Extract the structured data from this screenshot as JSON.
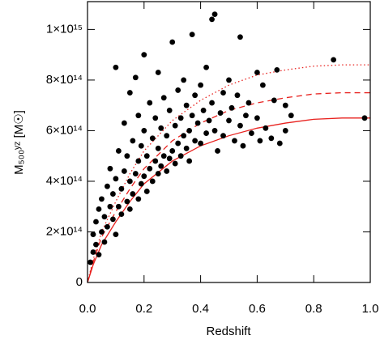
{
  "chart_data": {
    "type": "scatter",
    "xlabel": "Redshift",
    "ylabel": "M₅₀₀ʸᶻ [M☉]",
    "color": "#000000",
    "xlim": [
      0,
      1.0
    ],
    "ylim": [
      0,
      1110000000000000.0
    ],
    "xticks": [
      {
        "value": 0,
        "label": "0.0"
      },
      {
        "value": 0.2,
        "label": "0.2"
      },
      {
        "value": 0.4,
        "label": "0.4"
      },
      {
        "value": 0.6,
        "label": "0.6"
      },
      {
        "value": 0.8,
        "label": "0.8"
      },
      {
        "value": 1.0,
        "label": "1.0"
      }
    ],
    "yticks": [
      0,
      {
        "value": 200000000000000.0,
        "label": "2×10¹⁴"
      },
      {
        "value": 400000000000000.0,
        "label": "4×10¹⁴"
      },
      {
        "value": 600000000000000.0,
        "label": "6×10¹⁴"
      },
      {
        "value": 800000000000000.0,
        "label": "8×10¹⁴"
      },
      {
        "value": 1000000000000000.0,
        "label": "1×10¹⁵"
      }
    ],
    "x": [
      0.01,
      0.02,
      0.02,
      0.03,
      0.03,
      0.04,
      0.04,
      0.05,
      0.05,
      0.06,
      0.06,
      0.07,
      0.07,
      0.08,
      0.08,
      0.09,
      0.09,
      0.1,
      0.1,
      0.1,
      0.11,
      0.11,
      0.12,
      0.12,
      0.13,
      0.13,
      0.14,
      0.14,
      0.15,
      0.15,
      0.15,
      0.16,
      0.16,
      0.17,
      0.17,
      0.18,
      0.18,
      0.18,
      0.19,
      0.19,
      0.2,
      0.2,
      0.2,
      0.21,
      0.21,
      0.22,
      0.22,
      0.23,
      0.23,
      0.24,
      0.24,
      0.25,
      0.25,
      0.25,
      0.26,
      0.26,
      0.27,
      0.27,
      0.28,
      0.28,
      0.29,
      0.29,
      0.3,
      0.3,
      0.31,
      0.31,
      0.32,
      0.32,
      0.33,
      0.33,
      0.34,
      0.34,
      0.35,
      0.35,
      0.36,
      0.36,
      0.37,
      0.37,
      0.38,
      0.38,
      0.39,
      0.4,
      0.4,
      0.41,
      0.42,
      0.42,
      0.43,
      0.44,
      0.44,
      0.45,
      0.45,
      0.46,
      0.47,
      0.48,
      0.48,
      0.5,
      0.5,
      0.51,
      0.52,
      0.53,
      0.54,
      0.54,
      0.55,
      0.56,
      0.57,
      0.58,
      0.6,
      0.6,
      0.61,
      0.62,
      0.63,
      0.65,
      0.66,
      0.67,
      0.68,
      0.7,
      0.7,
      0.72,
      0.87,
      0.98
    ],
    "y": [
      80000000000000.0,
      120000000000000.0,
      190000000000000.0,
      150000000000000.0,
      240000000000000.0,
      110000000000000.0,
      290000000000000.0,
      200000000000000.0,
      330000000000000.0,
      160000000000000.0,
      260000000000000.0,
      380000000000000.0,
      220000000000000.0,
      300000000000000.0,
      450000000000000.0,
      250000000000000.0,
      350000000000000.0,
      190000000000000.0,
      410000000000000.0,
      850000000000000.0,
      300000000000000.0,
      520000000000000.0,
      270000000000000.0,
      370000000000000.0,
      440000000000000.0,
      630000000000000.0,
      320000000000000.0,
      500000000000000.0,
      290000000000000.0,
      400000000000000.0,
      750000000000000.0,
      350000000000000.0,
      560000000000000.0,
      430000000000000.0,
      810000000000000.0,
      330000000000000.0,
      480000000000000.0,
      660000000000000.0,
      390000000000000.0,
      540000000000000.0,
      420000000000000.0,
      600000000000000.0,
      900000000000000.0,
      360000000000000.0,
      500000000000000.0,
      450000000000000.0,
      710000000000000.0,
      400000000000000.0,
      570000000000000.0,
      480000000000000.0,
      650000000000000.0,
      430000000000000.0,
      530000000000000.0,
      830000000000000.0,
      460000000000000.0,
      610000000000000.0,
      500000000000000.0,
      730000000000000.0,
      440000000000000.0,
      580000000000000.0,
      490000000000000.0,
      680000000000000.0,
      520000000000000.0,
      950000000000000.0,
      470000000000000.0,
      620000000000000.0,
      550000000000000.0,
      760000000000000.0,
      500000000000000.0,
      650000000000000.0,
      580000000000000.0,
      800000000000000.0,
      530000000000000.0,
      700000000000000.0,
      600000000000000.0,
      480000000000000.0,
      660000000000000.0,
      980000000000000.0,
      560000000000000.0,
      740000000000000.0,
      630000000000000.0,
      550000000000000.0,
      780000000000000.0,
      680000000000000.0,
      590000000000000.0,
      850000000000000.0,
      640000000000000.0,
      710000000000000.0,
      1040000000000000.0,
      1060000000000000.0,
      600000000000000.0,
      520000000000000.0,
      670000000000000.0,
      750000000000000.0,
      580000000000000.0,
      640000000000000.0,
      800000000000000.0,
      690000000000000.0,
      560000000000000.0,
      740000000000000.0,
      620000000000000.0,
      970000000000000.0,
      540000000000000.0,
      660000000000000.0,
      710000000000000.0,
      590000000000000.0,
      650000000000000.0,
      830000000000000.0,
      560000000000000.0,
      780000000000000.0,
      610000000000000.0,
      570000000000000.0,
      720000000000000.0,
      840000000000000.0,
      550000000000000.0,
      600000000000000.0,
      700000000000000.0,
      660000000000000.0,
      880000000000000.0,
      650000000000000.0
    ],
    "lines": [
      {
        "style": "solid",
        "color": "#e8221f",
        "x": [
          0,
          0.02,
          0.05,
          0.1,
          0.15,
          0.2,
          0.3,
          0.4,
          0.5,
          0.6,
          0.7,
          0.8,
          0.9,
          1.0
        ],
        "values": [
          0,
          70000000000000.0,
          150000000000000.0,
          240000000000000.0,
          320000000000000.0,
          390000000000000.0,
          480000000000000.0,
          540000000000000.0,
          580000000000000.0,
          610000000000000.0,
          630000000000000.0,
          645000000000000.0,
          650000000000000.0,
          650000000000000.0
        ]
      },
      {
        "style": "dashed",
        "color": "#e8221f",
        "x": [
          0,
          0.02,
          0.05,
          0.1,
          0.15,
          0.2,
          0.3,
          0.4,
          0.5,
          0.6,
          0.7,
          0.8,
          0.9,
          1.0
        ],
        "values": [
          0,
          80000000000000.0,
          180000000000000.0,
          280000000000000.0,
          370000000000000.0,
          450000000000000.0,
          560000000000000.0,
          630000000000000.0,
          680000000000000.0,
          710000000000000.0,
          730000000000000.0,
          745000000000000.0,
          750000000000000.0,
          750000000000000.0
        ]
      },
      {
        "style": "dotted",
        "color": "#e8221f",
        "x": [
          0,
          0.02,
          0.05,
          0.1,
          0.15,
          0.2,
          0.3,
          0.4,
          0.5,
          0.6,
          0.7,
          0.8,
          0.9,
          1.0
        ],
        "values": [
          0,
          90000000000000.0,
          200000000000000.0,
          320000000000000.0,
          430000000000000.0,
          520000000000000.0,
          640000000000000.0,
          720000000000000.0,
          780000000000000.0,
          820000000000000.0,
          840000000000000.0,
          855000000000000.0,
          860000000000000.0,
          860000000000000.0
        ]
      }
    ]
  }
}
